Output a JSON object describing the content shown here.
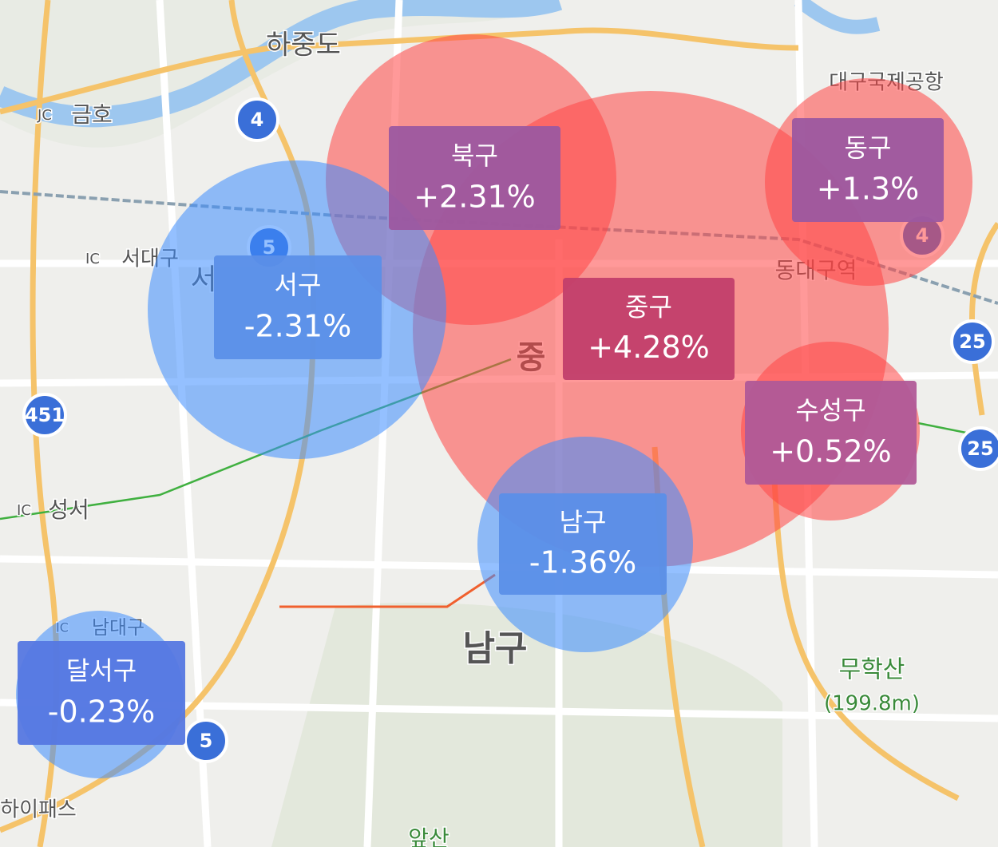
{
  "districts": [
    {
      "name": "중구",
      "change": "+4.28%",
      "color": "#c23f6b",
      "bubble": "#ff4646"
    },
    {
      "name": "북구",
      "change": "+2.31%",
      "color": "#9c58a0",
      "bubble": "#ff4646"
    },
    {
      "name": "동구",
      "change": "+1.3%",
      "color": "#9c58a0",
      "bubble": "#ff4646"
    },
    {
      "name": "수성구",
      "change": "+0.52%",
      "color": "#b05a98",
      "bubble": "#ff4646"
    },
    {
      "name": "서구",
      "change": "-2.31%",
      "color": "#5b8fe8",
      "bubble": "#3c8cff"
    },
    {
      "name": "남구",
      "change": "-1.36%",
      "color": "#5b8fe8",
      "bubble": "#3c8cff"
    },
    {
      "name": "달서구",
      "change": "-0.23%",
      "color": "#5577e2",
      "bubble": "#3c8cff"
    }
  ],
  "map_labels": [
    "하중도",
    "금호",
    "JC",
    "대구국제공항",
    "서대구",
    "IC",
    "동대구역",
    "성서",
    "IC",
    "남대구",
    "IC",
    "남구",
    "무학산",
    "(199.8m)",
    "하이패스",
    "앞산",
    "중",
    "서"
  ],
  "route_shields": [
    "4",
    "5",
    "4",
    "25",
    "25",
    "5",
    "451"
  ]
}
